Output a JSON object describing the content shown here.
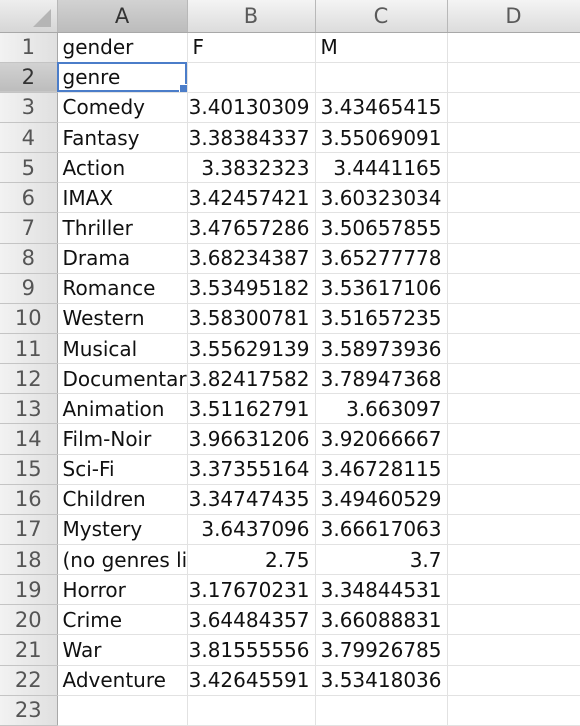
{
  "columns": [
    "A",
    "B",
    "C",
    "D"
  ],
  "row_numbers": [
    "1",
    "2",
    "3",
    "4",
    "5",
    "6",
    "7",
    "8",
    "9",
    "10",
    "11",
    "12",
    "13",
    "14",
    "15",
    "16",
    "17",
    "18",
    "19",
    "20",
    "21",
    "22",
    "23"
  ],
  "selected_cell": "A2",
  "rows": [
    {
      "a": "gender",
      "b": "F",
      "c": "M",
      "d": ""
    },
    {
      "a": "genre",
      "b": "",
      "c": "",
      "d": ""
    },
    {
      "a": "Comedy",
      "b": "3.40130309",
      "c": "3.43465415",
      "d": ""
    },
    {
      "a": "Fantasy",
      "b": "3.38384337",
      "c": "3.55069091",
      "d": ""
    },
    {
      "a": "Action",
      "b": "3.3832323",
      "c": "3.4441165",
      "d": ""
    },
    {
      "a": "IMAX",
      "b": "3.42457421",
      "c": "3.60323034",
      "d": ""
    },
    {
      "a": "Thriller",
      "b": "3.47657286",
      "c": "3.50657855",
      "d": ""
    },
    {
      "a": "Drama",
      "b": "3.68234387",
      "c": "3.65277778",
      "d": ""
    },
    {
      "a": "Romance",
      "b": "3.53495182",
      "c": "3.53617106",
      "d": ""
    },
    {
      "a": "Western",
      "b": "3.58300781",
      "c": "3.51657235",
      "d": ""
    },
    {
      "a": "Musical",
      "b": "3.55629139",
      "c": "3.58973936",
      "d": ""
    },
    {
      "a": "Documentary",
      "b": "3.82417582",
      "c": "3.78947368",
      "d": ""
    },
    {
      "a": "Animation",
      "b": "3.51162791",
      "c": "3.663097",
      "d": ""
    },
    {
      "a": "Film-Noir",
      "b": "3.96631206",
      "c": "3.92066667",
      "d": ""
    },
    {
      "a": "Sci-Fi",
      "b": "3.37355164",
      "c": "3.46728115",
      "d": ""
    },
    {
      "a": "Children",
      "b": "3.34747435",
      "c": "3.49460529",
      "d": ""
    },
    {
      "a": "Mystery",
      "b": "3.6437096",
      "c": "3.66617063",
      "d": ""
    },
    {
      "a": "(no genres listed)",
      "b": "2.75",
      "c": "3.7",
      "d": ""
    },
    {
      "a": "Horror",
      "b": "3.17670231",
      "c": "3.34844531",
      "d": ""
    },
    {
      "a": "Crime",
      "b": "3.64484357",
      "c": "3.66088831",
      "d": ""
    },
    {
      "a": "War",
      "b": "3.81555556",
      "c": "3.79926785",
      "d": ""
    },
    {
      "a": "Adventure",
      "b": "3.42645591",
      "c": "3.53418036",
      "d": ""
    },
    {
      "a": "",
      "b": "",
      "c": "",
      "d": ""
    }
  ],
  "colors": {
    "selection": "#4b7dc9",
    "header_bg": "#dcdcdc",
    "grid": "#e2e2e2"
  }
}
